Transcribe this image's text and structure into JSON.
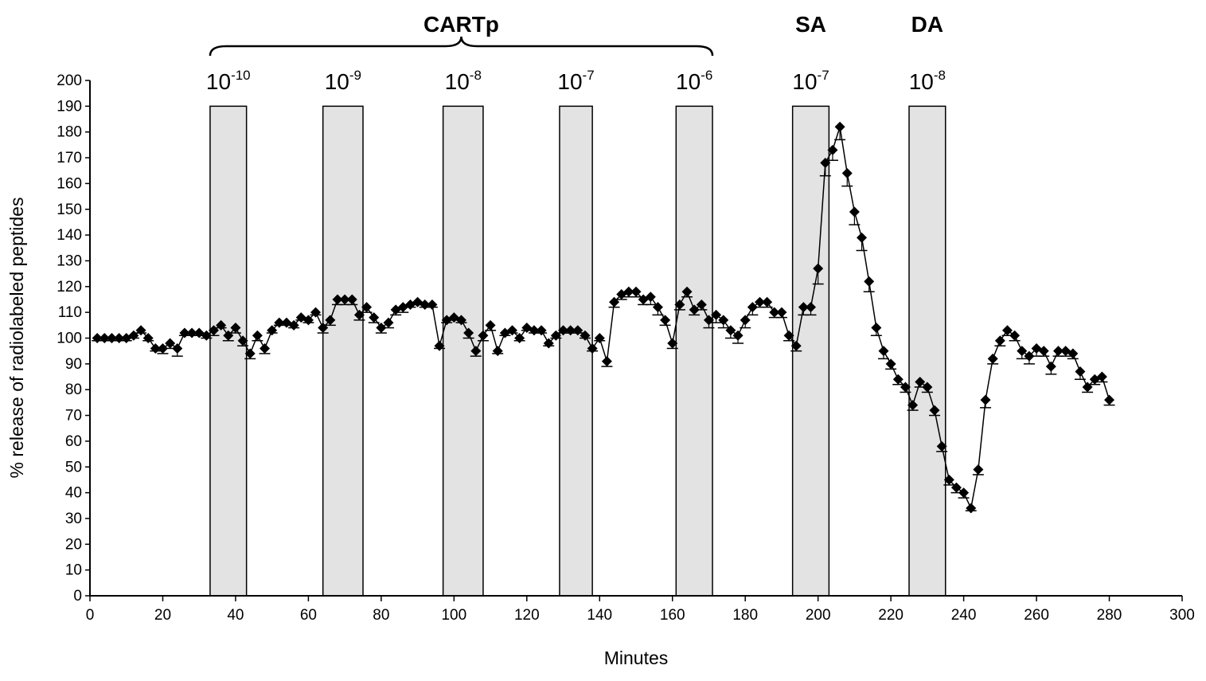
{
  "chart_data": {
    "type": "line",
    "title": "",
    "xlabel": "Minutes",
    "ylabel": "% release of radiolabeled peptides",
    "xlim": [
      0,
      300
    ],
    "ylim": [
      0,
      200
    ],
    "x_ticks": [
      0,
      20,
      40,
      60,
      80,
      100,
      120,
      140,
      160,
      180,
      200,
      220,
      240,
      260,
      280,
      300
    ],
    "y_ticks": [
      0,
      10,
      20,
      30,
      40,
      50,
      60,
      70,
      80,
      90,
      100,
      110,
      120,
      130,
      140,
      150,
      160,
      170,
      180,
      190,
      200
    ],
    "grid": false,
    "legend": "none",
    "marker": "diamond",
    "line_color": "#000000",
    "bar_fill": "#e3e3e3",
    "stimulation_periods": [
      {
        "group": "CARTp",
        "conc_base": "10",
        "conc_exp": "-10",
        "start": 33,
        "end": 43,
        "level": 190
      },
      {
        "group": "CARTp",
        "conc_base": "10",
        "conc_exp": "-9",
        "start": 64,
        "end": 75,
        "level": 190
      },
      {
        "group": "CARTp",
        "conc_base": "10",
        "conc_exp": "-8",
        "start": 97,
        "end": 108,
        "level": 190
      },
      {
        "group": "CARTp",
        "conc_base": "10",
        "conc_exp": "-7",
        "start": 129,
        "end": 138,
        "level": 190
      },
      {
        "group": "CARTp",
        "conc_base": "10",
        "conc_exp": "-6",
        "start": 161,
        "end": 171,
        "level": 190
      },
      {
        "group": "SA",
        "conc_base": "10",
        "conc_exp": "-7",
        "start": 193,
        "end": 203,
        "level": 190
      },
      {
        "group": "DA",
        "conc_base": "10",
        "conc_exp": "-8",
        "start": 225,
        "end": 235,
        "level": 190
      }
    ],
    "group_labels": [
      {
        "text": "CARTp",
        "from": 33,
        "to": 171
      },
      {
        "text": "SA",
        "from": 198,
        "to": 198
      },
      {
        "text": "DA",
        "from": 230,
        "to": 230
      }
    ],
    "series": [
      {
        "x": [
          2,
          4,
          6,
          8,
          10,
          12,
          14,
          16,
          18,
          20,
          22,
          24,
          26,
          28,
          30,
          32,
          34,
          36,
          38,
          40,
          42,
          44,
          46,
          48,
          50,
          52,
          54,
          56,
          58,
          60,
          62,
          64,
          66,
          68,
          70,
          72,
          74,
          76,
          78,
          80,
          82,
          84,
          86,
          88,
          90,
          92,
          94,
          96,
          98,
          100,
          102,
          104,
          106,
          108,
          110,
          112,
          114,
          116,
          118,
          120,
          122,
          124,
          126,
          128,
          130,
          132,
          134,
          136,
          138,
          140,
          142,
          144,
          146,
          148,
          150,
          152,
          154,
          156,
          158,
          160,
          162,
          164,
          166,
          168,
          170,
          172,
          174,
          176,
          178,
          180,
          182,
          184,
          186,
          188,
          190,
          192,
          194,
          196,
          198,
          200,
          202,
          204,
          206,
          208,
          210,
          212,
          214,
          216,
          218,
          220,
          222,
          224,
          226,
          228,
          230,
          232,
          234,
          236,
          238,
          240,
          242,
          244,
          246,
          248,
          250,
          252,
          254,
          256,
          258,
          260,
          262,
          264,
          266,
          268,
          270,
          272,
          274,
          276,
          278,
          280
        ],
        "values": [
          100,
          100,
          100,
          100,
          100,
          101,
          103,
          100,
          96,
          96,
          98,
          96,
          102,
          102,
          102,
          101,
          103,
          105,
          101,
          104,
          99,
          94,
          101,
          96,
          103,
          106,
          106,
          105,
          108,
          107,
          110,
          104,
          107,
          115,
          115,
          115,
          109,
          112,
          108,
          104,
          106,
          111,
          112,
          113,
          114,
          113,
          113,
          97,
          107,
          108,
          107,
          102,
          95,
          101,
          105,
          95,
          102,
          103,
          100,
          104,
          103,
          103,
          98,
          101,
          103,
          103,
          103,
          101,
          96,
          100,
          91,
          114,
          117,
          118,
          118,
          115,
          116,
          112,
          107,
          98,
          113,
          118,
          111,
          113,
          107,
          109,
          107,
          103,
          101,
          107,
          112,
          114,
          114,
          110,
          110,
          101,
          97,
          112,
          112,
          127,
          168,
          173,
          182,
          164,
          149,
          139,
          122,
          104,
          95,
          90,
          84,
          81,
          74,
          83,
          81,
          72,
          58,
          45,
          42,
          40,
          34,
          49,
          76,
          92,
          99,
          103,
          101,
          95,
          93,
          96,
          95,
          89,
          95,
          95,
          94,
          87,
          81,
          84,
          85,
          76
        ],
        "errors": [
          1,
          1,
          1,
          1,
          1,
          1,
          1,
          1,
          1,
          2,
          2,
          3,
          1,
          1,
          1,
          1,
          2,
          1,
          2,
          2,
          2,
          2,
          2,
          2,
          1,
          1,
          1,
          1,
          1,
          1,
          1,
          2,
          2,
          2,
          2,
          2,
          2,
          2,
          2,
          2,
          2,
          2,
          2,
          1,
          1,
          1,
          1,
          1,
          1,
          1,
          1,
          2,
          2,
          2,
          2,
          1,
          1,
          1,
          1,
          1,
          1,
          1,
          1,
          1,
          1,
          1,
          1,
          1,
          1,
          1,
          2,
          2,
          2,
          2,
          2,
          2,
          3,
          3,
          2,
          2,
          2,
          2,
          2,
          2,
          3,
          3,
          3,
          3,
          3,
          3,
          3,
          2,
          2,
          2,
          2,
          2,
          2,
          3,
          3,
          6,
          5,
          4,
          5,
          5,
          5,
          5,
          4,
          3,
          3,
          2,
          2,
          2,
          2,
          2,
          2,
          2,
          2,
          2,
          2,
          2,
          1,
          2,
          3,
          2,
          2,
          2,
          2,
          3,
          3,
          3,
          2,
          3,
          2,
          2,
          2,
          3,
          2,
          2,
          2,
          2
        ]
      }
    ]
  }
}
